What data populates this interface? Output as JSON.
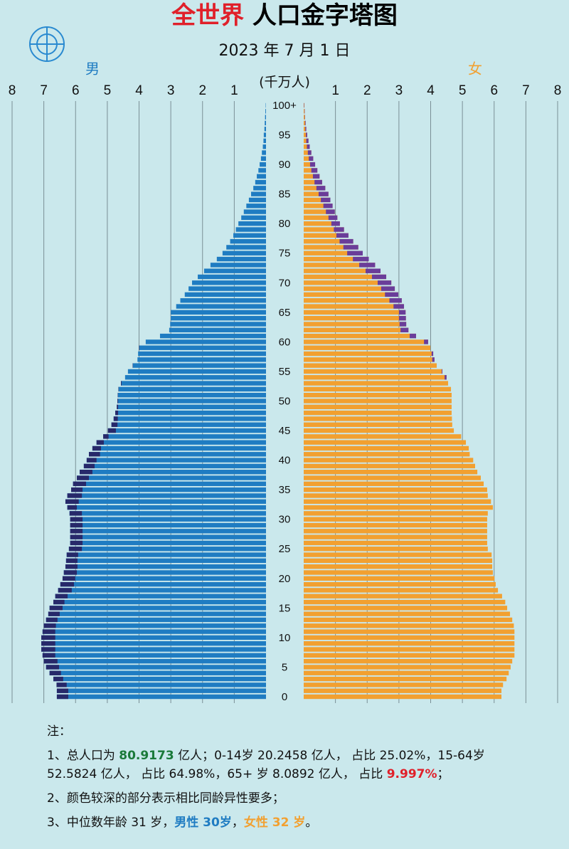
{
  "chart_data": {
    "type": "pyramid",
    "title": [
      {
        "text": "全世界",
        "color": "#e0202a"
      },
      " 人口金字塔图"
    ],
    "subtitle": "2023 年 7 月 1 日",
    "unit": "(千万人)",
    "xlim": [
      0,
      8
    ],
    "xticks": [
      1,
      2,
      3,
      4,
      5,
      6,
      7,
      8
    ],
    "grid": true,
    "categories": [
      "0",
      null,
      null,
      null,
      null,
      "5",
      null,
      null,
      null,
      null,
      "10",
      null,
      null,
      null,
      null,
      "15",
      null,
      null,
      null,
      null,
      "20",
      null,
      null,
      null,
      null,
      "25",
      null,
      null,
      null,
      null,
      "30",
      null,
      null,
      null,
      null,
      "35",
      null,
      null,
      null,
      null,
      "40",
      null,
      null,
      null,
      null,
      "45",
      null,
      null,
      null,
      null,
      "50",
      null,
      null,
      null,
      null,
      "55",
      null,
      null,
      null,
      null,
      "60",
      null,
      null,
      null,
      null,
      "65",
      null,
      null,
      null,
      null,
      "70",
      null,
      null,
      null,
      null,
      "75",
      null,
      null,
      null,
      null,
      "80",
      null,
      null,
      null,
      null,
      "85",
      null,
      null,
      null,
      null,
      "90",
      null,
      null,
      null,
      null,
      "95",
      null,
      null,
      null,
      null,
      "100+"
    ],
    "series": [
      {
        "name": "男",
        "color": "#1f7cc2",
        "excess_color": "#27296a",
        "values": [
          6.59,
          6.59,
          6.6,
          6.7,
          6.82,
          6.93,
          7.0,
          7.04,
          7.08,
          7.08,
          7.08,
          7.04,
          7.0,
          6.93,
          6.86,
          6.82,
          6.7,
          6.64,
          6.55,
          6.48,
          6.41,
          6.37,
          6.32,
          6.3,
          6.28,
          6.21,
          6.17,
          6.17,
          6.17,
          6.17,
          6.17,
          6.19,
          6.26,
          6.32,
          6.26,
          6.14,
          6.08,
          5.96,
          5.87,
          5.74,
          5.65,
          5.58,
          5.47,
          5.34,
          5.13,
          4.98,
          4.87,
          4.8,
          4.75,
          4.7,
          4.68,
          4.67,
          4.65,
          4.57,
          4.44,
          4.35,
          4.2,
          4.05,
          4.03,
          4.0,
          3.79,
          3.34,
          3.05,
          3.02,
          3.0,
          3.0,
          2.83,
          2.7,
          2.56,
          2.44,
          2.33,
          2.15,
          1.95,
          1.75,
          1.55,
          1.37,
          1.25,
          1.13,
          1.03,
          0.95,
          0.87,
          0.78,
          0.7,
          0.62,
          0.54,
          0.47,
          0.4,
          0.34,
          0.29,
          0.24,
          0.2,
          0.16,
          0.13,
          0.1,
          0.08,
          0.07,
          0.05,
          0.04,
          0.03,
          0.02,
          0.01
        ]
      },
      {
        "name": "女",
        "color": "#f2a030",
        "excess_color": "#6a3d9a",
        "values": [
          6.23,
          6.23,
          6.28,
          6.39,
          6.46,
          6.52,
          6.57,
          6.64,
          6.64,
          6.64,
          6.64,
          6.64,
          6.62,
          6.57,
          6.5,
          6.41,
          6.35,
          6.25,
          6.12,
          6.05,
          6.01,
          5.96,
          5.94,
          5.94,
          5.92,
          5.8,
          5.78,
          5.78,
          5.78,
          5.78,
          5.78,
          5.8,
          5.96,
          5.9,
          5.8,
          5.78,
          5.67,
          5.58,
          5.47,
          5.4,
          5.34,
          5.23,
          5.2,
          5.11,
          4.96,
          4.73,
          4.68,
          4.67,
          4.66,
          4.66,
          4.66,
          4.66,
          4.64,
          4.55,
          4.5,
          4.37,
          4.19,
          4.12,
          4.08,
          3.99,
          3.92,
          3.54,
          3.3,
          3.23,
          3.22,
          3.21,
          3.16,
          3.09,
          2.98,
          2.87,
          2.76,
          2.6,
          2.42,
          2.25,
          2.05,
          1.86,
          1.72,
          1.56,
          1.41,
          1.27,
          1.14,
          1.06,
          0.98,
          0.91,
          0.84,
          0.78,
          0.68,
          0.58,
          0.5,
          0.43,
          0.36,
          0.3,
          0.24,
          0.19,
          0.15,
          0.11,
          0.08,
          0.06,
          0.04,
          0.03,
          0.02
        ]
      }
    ]
  },
  "notes": {
    "heading": "注：",
    "items": [
      [
        "1、总人口为 ",
        {
          "text": "80.9173",
          "color": "#1a7a3a"
        },
        " 亿人；0-14岁 20.2458 亿人， 占比 25.02%，15-64岁"
      ],
      [
        "52.5824 亿人， 占比 64.98%，65+ 岁 8.0892 亿人， 占比 ",
        {
          "text": "9.997%",
          "color": "#e0202a"
        },
        "；"
      ],
      [
        "2、颜色较深的部分表示相比同龄异性要多；"
      ],
      [
        "3、中位数年龄 31 岁，",
        {
          "text": "男性 30岁",
          "color": "#1f7cc2"
        },
        "，",
        {
          "text": "女性 32 岁",
          "color": "#f2a030"
        },
        "。"
      ]
    ]
  }
}
